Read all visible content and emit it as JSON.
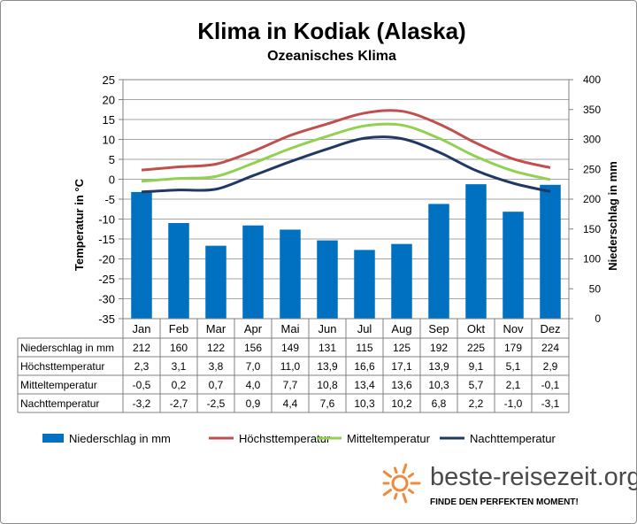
{
  "chart_data": {
    "type": "bar",
    "title": "Klima in Kodiak (Alaska)",
    "subtitle": "Ozeanisches  Klima",
    "categories": [
      "Jan",
      "Feb",
      "Mar",
      "Apr",
      "Mai",
      "Jun",
      "Jul",
      "Aug",
      "Sep",
      "Okt",
      "Nov",
      "Dez"
    ],
    "ylabel_left": "Temperatur in °C",
    "ylabel_right": "Niederschlag in mm",
    "ylim_left": [
      -35,
      25
    ],
    "ylim_right": [
      0,
      400
    ],
    "yticks_left": [
      "25",
      "20",
      "15",
      "10",
      "5",
      "0",
      "-5",
      "-10",
      "-15",
      "-20",
      "-25",
      "-30",
      "-35"
    ],
    "yticks_right": [
      "400",
      "350",
      "300",
      "250",
      "200",
      "150",
      "100",
      "50",
      "0"
    ],
    "grid": true,
    "legend_position": "bottom",
    "series": [
      {
        "name": "Niederschlag in mm",
        "kind": "bar",
        "axis": "right",
        "color": "#0070c0",
        "values": [
          212,
          160,
          122,
          156,
          149,
          131,
          115,
          125,
          192,
          225,
          179,
          224
        ],
        "labels": [
          "212",
          "160",
          "122",
          "156",
          "149",
          "131",
          "115",
          "125",
          "192",
          "225",
          "179",
          "224"
        ]
      },
      {
        "name": "Höchsttemperatur",
        "kind": "line",
        "axis": "left",
        "color": "#c0504d",
        "values": [
          2.3,
          3.1,
          3.8,
          7.0,
          11.0,
          13.9,
          16.6,
          17.1,
          13.9,
          9.1,
          5.1,
          2.9
        ],
        "labels": [
          "2,3",
          "3,1",
          "3,8",
          "7,0",
          "11,0",
          "13,9",
          "16,6",
          "17,1",
          "13,9",
          "9,1",
          "5,1",
          "2,9"
        ]
      },
      {
        "name": "Mitteltemperatur",
        "kind": "line",
        "axis": "left",
        "color": "#92d050",
        "values": [
          -0.5,
          0.2,
          0.7,
          4.0,
          7.7,
          10.8,
          13.4,
          13.6,
          10.3,
          5.7,
          2.1,
          -0.1
        ],
        "labels": [
          "-0,5",
          "0,2",
          "0,7",
          "4,0",
          "7,7",
          "10,8",
          "13,4",
          "13,6",
          "10,3",
          "5,7",
          "2,1",
          "-0,1"
        ]
      },
      {
        "name": "Nachttemperatur",
        "kind": "line",
        "axis": "left",
        "color": "#1f3864",
        "values": [
          -3.2,
          -2.7,
          -2.5,
          0.9,
          4.4,
          7.6,
          10.3,
          10.2,
          6.8,
          2.2,
          -1.0,
          -3.1
        ],
        "labels": [
          "-3,2",
          "-2,7",
          "-2,5",
          "0,9",
          "4,4",
          "7,6",
          "10,3",
          "10,2",
          "6,8",
          "2,2",
          "-1,0",
          "-3,1"
        ]
      }
    ]
  },
  "branding": {
    "site": "beste-reisezeit.org",
    "slogan": "FINDE DEN PERFEKTEN MOMENT!",
    "logo_color": "#f08a3c"
  }
}
